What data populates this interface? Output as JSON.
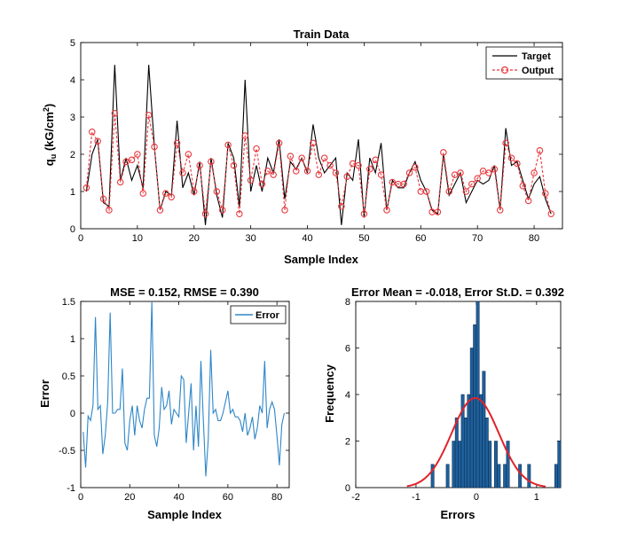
{
  "chart_data": [
    {
      "type": "line",
      "title": "Train Data",
      "xlabel": "Sample Index",
      "ylabel": "q_u (kG/cm^2)",
      "ylabel_parts": {
        "main": "q",
        "sub": "u",
        "unit_open": " (kG/cm",
        "sup": "2",
        "unit_close": ")"
      },
      "xlim": [
        0,
        85
      ],
      "ylim": [
        0,
        5
      ],
      "xticks": [
        "0",
        "10",
        "20",
        "30",
        "40",
        "50",
        "60",
        "70",
        "80"
      ],
      "yticks": [
        "0",
        "1",
        "2",
        "3",
        "4",
        "5"
      ],
      "grid": false,
      "legend_position": "top-right",
      "colors": {
        "target": "#000000",
        "output": "#e8383d"
      },
      "series": [
        {
          "name": "Target",
          "values": [
            1.0,
            2.0,
            2.4,
            0.7,
            0.6,
            4.4,
            1.3,
            1.9,
            1.3,
            1.7,
            1.1,
            4.4,
            2.2,
            0.5,
            1.0,
            0.9,
            2.9,
            1.1,
            1.5,
            0.9,
            1.8,
            0.1,
            1.9,
            0.9,
            0.3,
            2.3,
            1.9,
            0.6,
            4.0,
            1.0,
            1.7,
            1.0,
            1.9,
            1.5,
            2.4,
            0.8,
            1.8,
            1.6,
            1.9,
            1.5,
            2.8,
            1.9,
            1.5,
            1.7,
            1.9,
            0.1,
            1.5,
            1.3,
            2.4,
            0.3,
            1.9,
            1.5,
            2.3,
            0.5,
            1.3,
            1.1,
            1.1,
            1.5,
            1.8,
            1.3,
            1.0,
            0.5,
            0.4,
            2.0,
            0.9,
            1.2,
            1.5,
            0.7,
            1.0,
            1.3,
            1.2,
            1.3,
            1.7,
            0.5,
            2.7,
            1.7,
            1.8,
            1.3,
            0.8,
            1.2,
            1.4,
            0.8,
            0.4
          ]
        },
        {
          "name": "Output",
          "values": [
            1.1,
            2.6,
            2.35,
            0.8,
            0.5,
            3.1,
            1.25,
            1.8,
            1.85,
            2.0,
            0.95,
            3.05,
            2.2,
            0.5,
            0.95,
            0.85,
            2.3,
            1.5,
            2.0,
            1.0,
            1.7,
            0.4,
            1.8,
            1.0,
            0.5,
            2.25,
            1.7,
            0.4,
            2.5,
            1.3,
            2.15,
            1.2,
            1.55,
            1.45,
            2.3,
            0.5,
            1.95,
            1.55,
            1.9,
            1.55,
            2.3,
            1.45,
            1.9,
            1.7,
            1.5,
            0.6,
            1.4,
            1.75,
            1.7,
            0.4,
            1.6,
            1.85,
            1.45,
            0.5,
            1.25,
            1.2,
            1.2,
            1.5,
            1.65,
            1.0,
            1.0,
            0.45,
            0.45,
            2.05,
            1.0,
            1.45,
            1.5,
            1.0,
            1.2,
            1.35,
            1.55,
            1.5,
            1.6,
            0.5,
            2.3,
            1.9,
            1.75,
            1.15,
            0.75,
            1.5,
            2.1,
            0.95,
            0.4
          ]
        }
      ]
    },
    {
      "type": "line",
      "title": "MSE = 0.152, RMSE = 0.390",
      "xlabel": "Sample Index",
      "ylabel": "Error",
      "xlim": [
        0,
        85
      ],
      "ylim": [
        -1,
        1.5
      ],
      "xticks": [
        "0",
        "20",
        "40",
        "60",
        "80"
      ],
      "yticks": [
        "-1",
        "-0.5",
        "0",
        "0.5",
        "1",
        "1.5"
      ],
      "grid": false,
      "legend_position": "top-right",
      "colors": {
        "error": "#2e86c8"
      },
      "series": [
        {
          "name": "Error",
          "values": [
            -0.25,
            -0.73,
            -0.04,
            -0.1,
            0.1,
            1.29,
            0.05,
            0.1,
            -0.55,
            -0.3,
            0.15,
            1.35,
            0.0,
            0.0,
            0.05,
            0.05,
            0.6,
            -0.4,
            -0.5,
            -0.1,
            0.1,
            -0.3,
            0.1,
            -0.1,
            -0.2,
            0.05,
            0.2,
            0.2,
            1.5,
            -0.3,
            -0.45,
            -0.2,
            0.35,
            0.05,
            0.1,
            0.3,
            -0.15,
            0.05,
            0.0,
            -0.05,
            0.5,
            0.45,
            -0.4,
            0.0,
            0.4,
            -0.5,
            0.1,
            -0.45,
            0.7,
            -0.1,
            -0.85,
            -0.35,
            0.85,
            0.0,
            0.05,
            -0.1,
            -0.1,
            0.0,
            0.15,
            0.3,
            0.0,
            0.05,
            -0.05,
            -0.05,
            -0.1,
            -0.25,
            0.0,
            -0.3,
            -0.2,
            -0.05,
            -0.35,
            -0.2,
            0.1,
            0.0,
            0.7,
            -0.2,
            0.05,
            0.15,
            0.05,
            -0.3,
            -0.7,
            -0.15,
            0.0
          ]
        }
      ]
    },
    {
      "type": "bar",
      "title": "Error Mean = -0.018, Error St.D. = 0.392",
      "xlabel": "Errors",
      "ylabel": "Frequency",
      "xlim": [
        -2,
        1.4
      ],
      "ylim": [
        0,
        8
      ],
      "xticks": [
        "-2",
        "-1",
        "0",
        "1"
      ],
      "yticks": [
        "0",
        "2",
        "4",
        "6",
        "8"
      ],
      "grid": false,
      "colors": {
        "bars": "#1f5f9b",
        "bar_edge": "#0b2a4a",
        "fit": "#e0232b"
      },
      "bin_width": 0.05,
      "bins": [
        {
          "x": -0.75,
          "count": 1
        },
        {
          "x": -0.5,
          "count": 1
        },
        {
          "x": -0.4,
          "count": 2
        },
        {
          "x": -0.35,
          "count": 3
        },
        {
          "x": -0.3,
          "count": 2
        },
        {
          "x": -0.25,
          "count": 4
        },
        {
          "x": -0.2,
          "count": 3
        },
        {
          "x": -0.15,
          "count": 4
        },
        {
          "x": -0.1,
          "count": 6
        },
        {
          "x": -0.05,
          "count": 7
        },
        {
          "x": 0.0,
          "count": 8
        },
        {
          "x": 0.05,
          "count": 4
        },
        {
          "x": 0.1,
          "count": 5
        },
        {
          "x": 0.15,
          "count": 3
        },
        {
          "x": 0.2,
          "count": 2
        },
        {
          "x": 0.3,
          "count": 2
        },
        {
          "x": 0.35,
          "count": 1
        },
        {
          "x": 0.45,
          "count": 1
        },
        {
          "x": 0.5,
          "count": 2
        },
        {
          "x": 0.7,
          "count": 1
        },
        {
          "x": 0.85,
          "count": 1
        },
        {
          "x": 1.3,
          "count": 1
        },
        {
          "x": 1.35,
          "count": 2
        }
      ],
      "fit": {
        "mean": -0.018,
        "std": 0.392,
        "peak": 3.85
      }
    }
  ]
}
